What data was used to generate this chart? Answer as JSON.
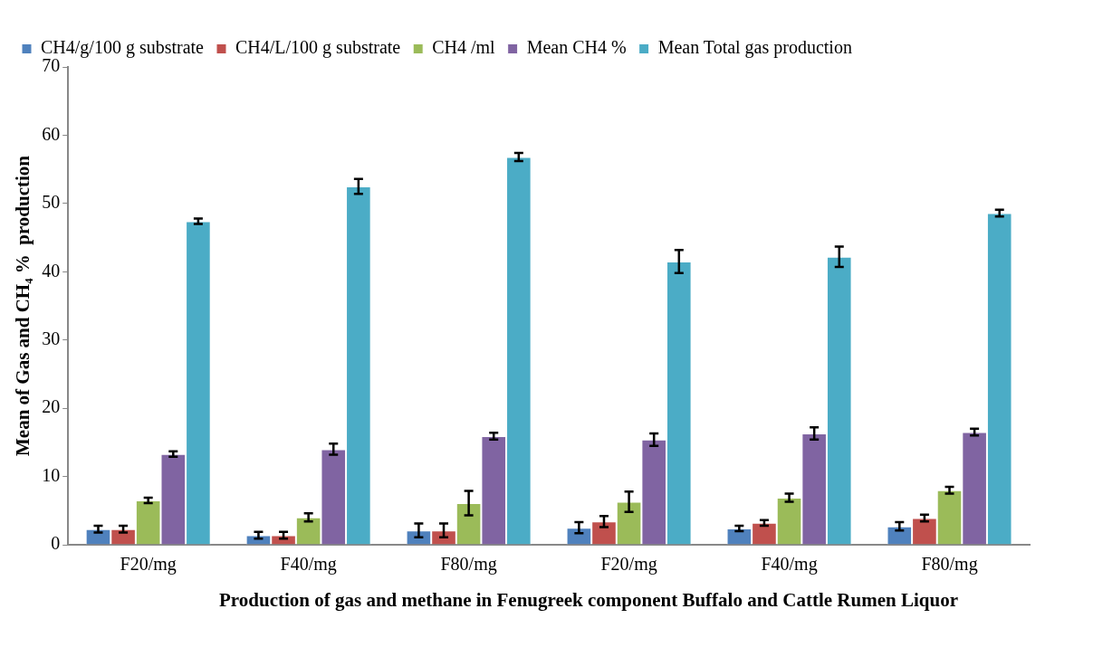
{
  "chart_data": {
    "type": "bar",
    "xlabel": "Production of gas and methane in Fenugreek component Buffalo and Cattle Rumen Liquor",
    "ylabel": "Mean of Gas and CH₄ %  production",
    "categories": [
      "F20/mg",
      "F40/mg",
      "F80/mg",
      "F20/mg",
      "F40/mg",
      "F80/mg"
    ],
    "series": [
      {
        "name": "CH4/g/100 g substrate",
        "color": "#4f81bd",
        "values": [
          2.3,
          1.4,
          2.1,
          2.5,
          2.4,
          2.7
        ],
        "errors": [
          0.5,
          0.5,
          1.0,
          0.8,
          0.4,
          0.6
        ]
      },
      {
        "name": "CH4/L/100 g substrate",
        "color": "#c0504d",
        "values": [
          2.3,
          1.4,
          2.1,
          3.4,
          3.2,
          3.9
        ],
        "errors": [
          0.5,
          0.5,
          1.0,
          0.8,
          0.4,
          0.5
        ]
      },
      {
        "name": "CH4 /ml",
        "color": "#9bbb59",
        "values": [
          6.5,
          4.0,
          6.1,
          6.3,
          6.9,
          8.0
        ],
        "errors": [
          0.4,
          0.6,
          1.8,
          1.5,
          0.6,
          0.5
        ]
      },
      {
        "name": "Mean CH4 %",
        "color": "#8064a2",
        "values": [
          13.3,
          14.0,
          15.9,
          15.4,
          16.3,
          16.5
        ],
        "errors": [
          0.4,
          0.8,
          0.5,
          0.9,
          0.9,
          0.5
        ]
      },
      {
        "name": "Mean Total gas production",
        "color": "#4bacc6",
        "values": [
          47.4,
          52.5,
          56.8,
          41.5,
          42.2,
          48.6
        ],
        "errors": [
          0.4,
          1.1,
          0.6,
          1.7,
          1.5,
          0.5
        ]
      }
    ],
    "ylim": [
      0,
      70
    ],
    "yticks": [
      0,
      10,
      20,
      30,
      40,
      50,
      60,
      70
    ],
    "grid": false,
    "legend": "top"
  }
}
